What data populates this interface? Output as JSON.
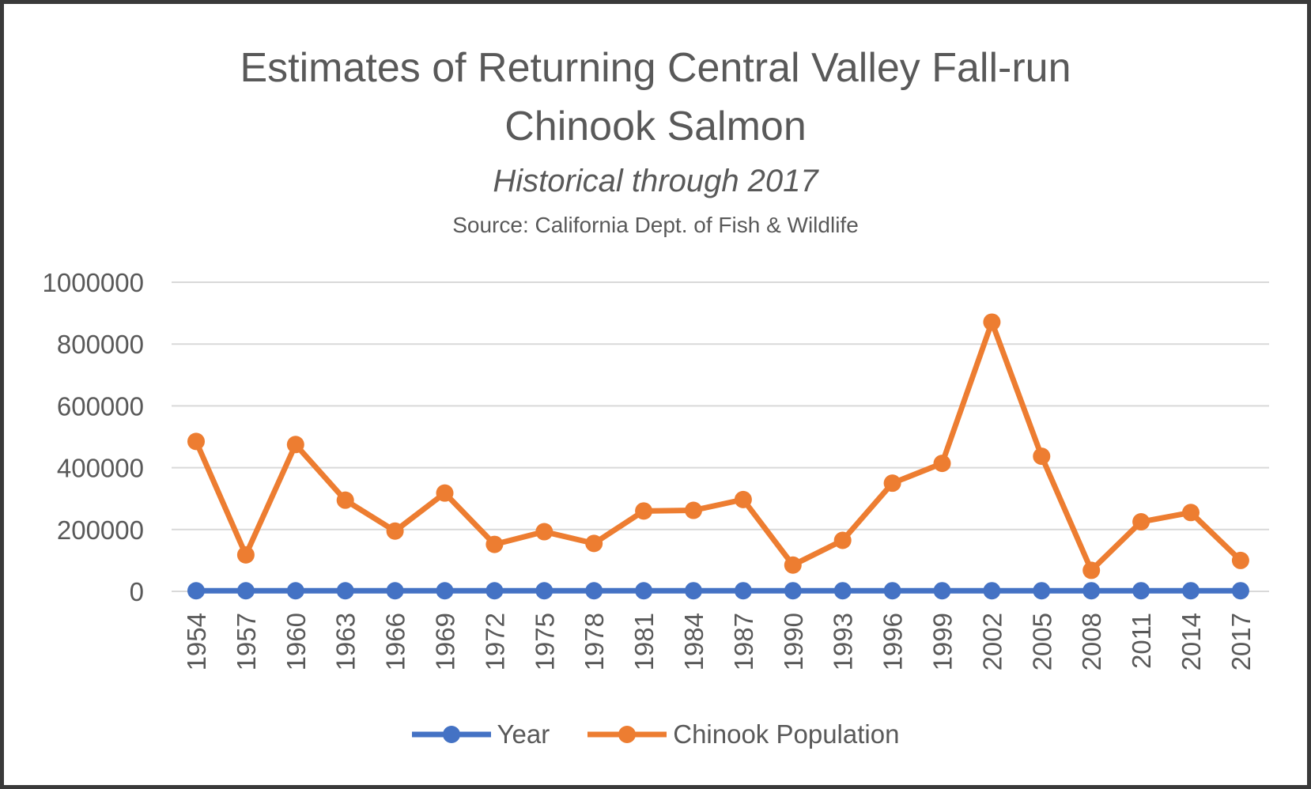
{
  "chart_data": {
    "type": "line",
    "title_lines": [
      "Estimates of Returning Central Valley Fall-run",
      "Chinook Salmon"
    ],
    "subtitle": "Historical through 2017",
    "source": "Source: California Dept. of Fish & Wildlife",
    "xlabel": "",
    "ylabel": "",
    "categories": [
      "1954",
      "1957",
      "1960",
      "1963",
      "1966",
      "1969",
      "1972",
      "1975",
      "1978",
      "1981",
      "1984",
      "1987",
      "1990",
      "1993",
      "1996",
      "1999",
      "2002",
      "2005",
      "2008",
      "2011",
      "2014",
      "2017"
    ],
    "ylim": [
      0,
      1000000
    ],
    "yticks": [
      "0",
      "200000",
      "400000",
      "600000",
      "800000",
      "1000000"
    ],
    "grid": true,
    "legend_position": "bottom",
    "series": [
      {
        "name": "Year",
        "color": "#4472c4",
        "values": [
          1954,
          1957,
          1960,
          1963,
          1966,
          1969,
          1972,
          1975,
          1978,
          1981,
          1984,
          1987,
          1990,
          1993,
          1996,
          1999,
          2002,
          2005,
          2008,
          2011,
          2014,
          2017
        ]
      },
      {
        "name": "Chinook Population",
        "color": "#ed7d31",
        "values": [
          485000,
          118000,
          475000,
          295000,
          195000,
          318000,
          152000,
          193000,
          155000,
          260000,
          262000,
          297000,
          85000,
          165000,
          350000,
          414000,
          871000,
          437000,
          68000,
          225000,
          255000,
          100000
        ]
      }
    ]
  }
}
